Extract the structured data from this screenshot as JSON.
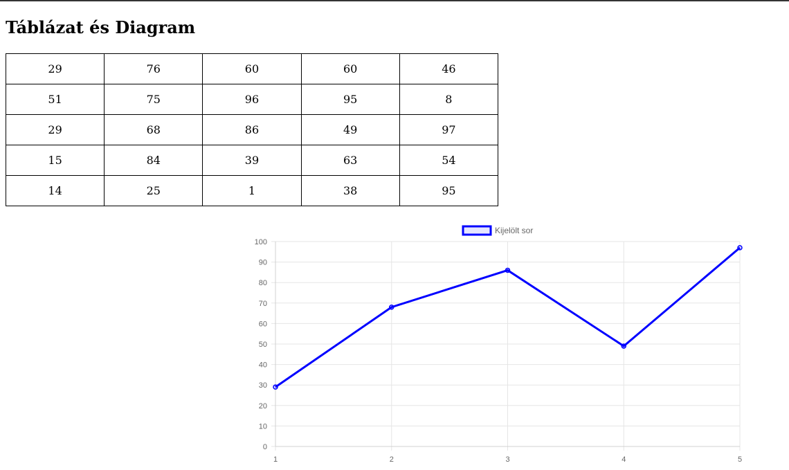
{
  "page": {
    "title": "Táblázat és Diagram"
  },
  "table": {
    "rows": [
      [
        "29",
        "76",
        "60",
        "60",
        "46"
      ],
      [
        "51",
        "75",
        "96",
        "95",
        "8"
      ],
      [
        "29",
        "68",
        "86",
        "49",
        "97"
      ],
      [
        "15",
        "84",
        "39",
        "63",
        "54"
      ],
      [
        "14",
        "25",
        "1",
        "38",
        "95"
      ]
    ]
  },
  "chart_data": {
    "type": "line",
    "title": "",
    "x": [
      1,
      2,
      3,
      4,
      5
    ],
    "xlabels": [
      "1",
      "2",
      "3",
      "4",
      "5"
    ],
    "series": [
      {
        "name": "Kijelölt sor",
        "values": [
          29,
          68,
          86,
          49,
          97
        ],
        "color": "#0000ff"
      }
    ],
    "ylim": [
      0,
      100
    ],
    "yticks": [
      "0",
      "10",
      "20",
      "30",
      "40",
      "50",
      "60",
      "70",
      "80",
      "90",
      "100"
    ],
    "grid": true,
    "legend": "top-center",
    "xlabel": "",
    "ylabel": ""
  },
  "colors": {
    "line": "#0000ff",
    "grid": "#e5e5e5",
    "tick_text": "#666666"
  }
}
